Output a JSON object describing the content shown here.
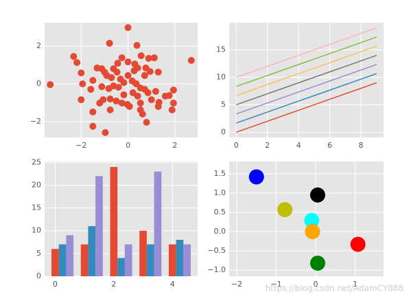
{
  "chart_data": [
    {
      "type": "scatter",
      "color": "#E24A33",
      "x": [
        -3.32,
        0,
        2.7,
        -0.79,
        0.38,
        -2.32,
        -2.18,
        -2.0,
        -1.94,
        -2.0,
        -1.5,
        -1.5,
        -0.97,
        0.79,
        1.88,
        1.94,
        1.32,
        1.76,
        1.94,
        1.18,
        0.88,
        1.12,
        0.56,
        -0.26,
        -0.44,
        -1.32,
        -1.12,
        -1.0,
        -1.5,
        -1.59,
        -1.12,
        -0.82,
        -1.06,
        -0.76,
        -0.5,
        -0.26,
        -0.03,
        0.06,
        0.53,
        0.53,
        0.62,
        1.0,
        0.85,
        0.71,
        0.53,
        0.35,
        0.18,
        0,
        0.26,
        0.41,
        0.76,
        0.94,
        1.29,
        0.71,
        -0.32,
        -0.18,
        -0.41,
        -0.62,
        -0.71,
        -0.91,
        -0.62,
        0.41,
        1.59,
        1.29,
        0.21,
        -0.18,
        -1.21,
        -0.76,
        -0.47,
        0,
        0.29
      ],
      "y": [
        -0.04,
        2.98,
        1.24,
        2.15,
        2.04,
        1.45,
        1.13,
        0.58,
        0,
        -0.84,
        -1.49,
        -2.25,
        -2.58,
        -2.04,
        -1.38,
        -1.02,
        -0.98,
        -0.62,
        -0.33,
        -0.4,
        1.35,
        1.38,
        1.49,
        1.38,
        1.09,
        0.84,
        0.8,
        0.62,
        0.18,
        -0.29,
        -0.15,
        -0.25,
        -0.84,
        -0.8,
        -0.91,
        -1.02,
        -1.09,
        -1.2,
        -1.02,
        -1.38,
        -1.6,
        -0.84,
        -0.47,
        -0.29,
        -0.22,
        0,
        0.15,
        0.44,
        0.69,
        0.84,
        0.84,
        0.65,
        0.62,
        0.44,
        0.25,
        0.07,
        -0.18,
        -0.11,
        0.33,
        0.44,
        0.8,
        -0.65,
        -0.65,
        -1.2,
        -0.47,
        -0.58,
        -1.02,
        -1.38,
        0.62,
        1.16,
        1.05
      ],
      "xlim": [
        -3.56,
        2.97
      ],
      "ylim": [
        -2.84,
        3.24
      ],
      "xticks": [
        {
          "value": -2,
          "label": "−2"
        },
        0,
        2
      ],
      "yticks": [
        {
          "value": -2,
          "label": "−2"
        },
        0,
        2
      ],
      "grid": true
    },
    {
      "type": "line",
      "x": [
        0,
        1,
        2,
        3,
        4,
        5,
        6,
        7,
        8,
        9
      ],
      "series": [
        {
          "color": "#E24A33",
          "values": [
            0,
            1,
            2,
            3,
            4,
            5,
            6,
            7,
            8,
            9
          ]
        },
        {
          "color": "#348ABD",
          "values": [
            1.67,
            2.67,
            3.67,
            4.67,
            5.67,
            6.67,
            7.67,
            8.67,
            9.67,
            10.67
          ]
        },
        {
          "color": "#988ED5",
          "values": [
            3.33,
            4.33,
            5.33,
            6.33,
            7.33,
            8.33,
            9.33,
            10.33,
            11.33,
            12.33
          ]
        },
        {
          "color": "#777777",
          "values": [
            5,
            6,
            7,
            8,
            9,
            10,
            11,
            12,
            13,
            14
          ]
        },
        {
          "color": "#FBC15E",
          "values": [
            6.67,
            7.67,
            8.67,
            9.67,
            10.67,
            11.67,
            12.67,
            13.67,
            14.67,
            15.67
          ]
        },
        {
          "color": "#8EBA42",
          "values": [
            8.33,
            9.33,
            10.33,
            11.33,
            12.33,
            13.33,
            14.33,
            15.33,
            16.33,
            17.33
          ]
        },
        {
          "color": "#FFB5B8",
          "values": [
            10,
            11,
            12,
            13,
            14,
            15,
            16,
            17,
            18,
            19
          ]
        }
      ],
      "xlim": [
        -0.45,
        9.45
      ],
      "ylim": [
        -0.95,
        19.95
      ],
      "xticks": [
        0,
        2,
        4,
        6,
        8
      ],
      "yticks": [
        0,
        5,
        10,
        15
      ],
      "grid": true
    },
    {
      "type": "bar",
      "x": [
        0,
        1,
        2,
        3,
        4
      ],
      "series": [
        {
          "color": "#E24A33",
          "values": [
            6,
            7,
            24,
            10,
            7
          ]
        },
        {
          "color": "#348ABD",
          "values": [
            7,
            11,
            4,
            7,
            8
          ]
        },
        {
          "color": "#988ED5",
          "values": [
            9,
            22,
            7,
            23,
            7
          ]
        }
      ],
      "xlim": [
        -0.36,
        4.86
      ],
      "ylim": [
        0,
        25.2
      ],
      "xticks": [
        0,
        2,
        4
      ],
      "yticks": [
        0,
        5,
        10,
        15,
        20,
        25
      ],
      "grid": true
    },
    {
      "type": "scatter",
      "x": [
        -1.5,
        0.05,
        -0.78,
        -0.1,
        -0.08,
        1.07,
        0.05
      ],
      "y": [
        1.42,
        0.95,
        0.57,
        0.29,
        0,
        -0.33,
        -0.82
      ],
      "colors": [
        "#0000ff",
        "#000000",
        "#bfbf00",
        "#00ffff",
        "#ffa500",
        "#ff0000",
        "#008000"
      ],
      "xlim": [
        -2.19,
        1.72
      ],
      "ylim": [
        -1.16,
        1.82
      ],
      "xticks": [
        {
          "value": -2,
          "label": "−2"
        },
        {
          "value": -1,
          "label": "−1"
        },
        0,
        1
      ],
      "yticks": [
        {
          "value": -1,
          "label": "−1.0"
        },
        {
          "value": -0.5,
          "label": "−0.5"
        },
        {
          "value": 0,
          "label": "0.0"
        },
        {
          "value": 0.5,
          "label": "0.5"
        },
        {
          "value": 1,
          "label": "1.0"
        },
        {
          "value": 1.5,
          "label": "1.5"
        }
      ],
      "grid": true
    }
  ],
  "watermark": "https://blog.csdn.net/AdamCY888"
}
